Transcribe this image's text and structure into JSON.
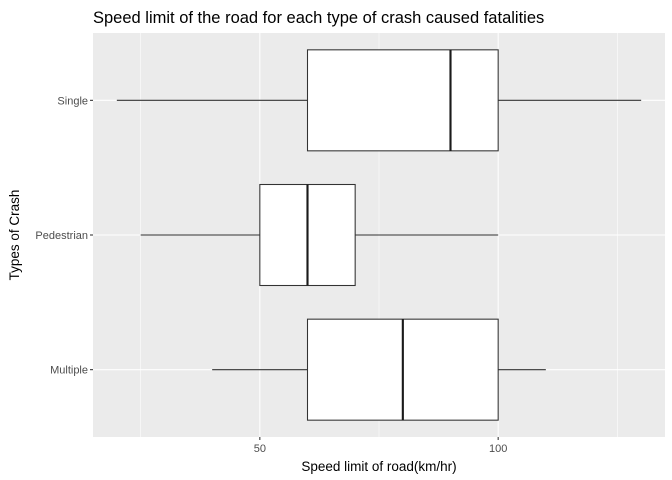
{
  "chart_data": {
    "type": "boxplot",
    "title": "Speed limit of the road for each type of crash caused fatalities",
    "xlabel": "Speed limit of road(km/hr)",
    "ylabel": "Types of Crash",
    "xlim": [
      15,
      135
    ],
    "x_major_ticks": [
      50,
      100
    ],
    "x_minor_ticks": [
      25,
      75,
      125
    ],
    "x_tick_labels": [
      "50",
      "100"
    ],
    "grid": true,
    "categories": [
      "Single",
      "Pedestrian",
      "Multiple"
    ],
    "boxes": [
      {
        "category": "Single",
        "whisker_low": 20,
        "q1": 60,
        "median": 90,
        "q3": 100,
        "whisker_high": 130
      },
      {
        "category": "Pedestrian",
        "whisker_low": 25,
        "q1": 50,
        "median": 60,
        "q3": 70,
        "whisker_high": 100
      },
      {
        "category": "Multiple",
        "whisker_low": 40,
        "q1": 60,
        "median": 80,
        "q3": 100,
        "whisker_high": 110
      }
    ]
  }
}
